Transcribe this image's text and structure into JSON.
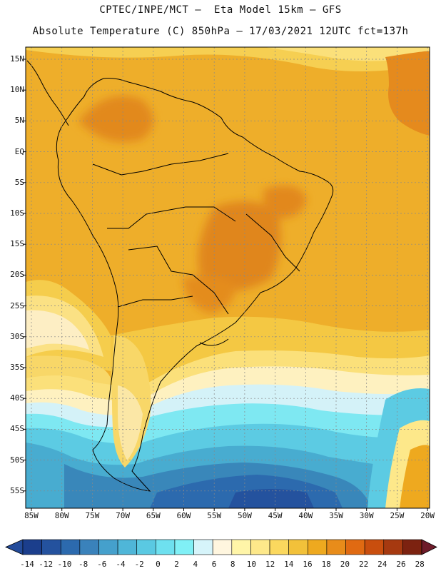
{
  "title_line1": "CPTEC/INPE/MCT –  Eta Model 15km – GFS",
  "title_line2": "Absolute Temperature (C) 850hPa – 17/03/2021 12UTC fct=137h",
  "lat_labels": [
    "15N",
    "10N",
    "5N",
    "EQ",
    "5S",
    "10S",
    "15S",
    "20S",
    "25S",
    "30S",
    "35S",
    "40S",
    "45S",
    "50S",
    "55S"
  ],
  "lon_labels": [
    "85W",
    "80W",
    "75W",
    "70W",
    "65W",
    "60W",
    "55W",
    "50W",
    "45W",
    "40W",
    "35W",
    "30W",
    "25W",
    "20W"
  ],
  "colorbar": {
    "ticks": [
      "-14",
      "-12",
      "-10",
      "-8",
      "-6",
      "-4",
      "-2",
      "0",
      "2",
      "4",
      "6",
      "8",
      "10",
      "12",
      "14",
      "16",
      "18",
      "20",
      "22",
      "24",
      "26",
      "28"
    ],
    "colors": [
      "#1b3e8c",
      "#24529e",
      "#2c6aae",
      "#3a82bb",
      "#45a0cc",
      "#4fb6d8",
      "#5ac9e2",
      "#6ee0ef",
      "#80f0f6",
      "#d6f4fa",
      "#fff6df",
      "#fff5a8",
      "#fde88a",
      "#fbd85e",
      "#f2c13a",
      "#eea91f",
      "#e88c1a",
      "#e06a12",
      "#c94e0e",
      "#a63910",
      "#7c2210"
    ],
    "under_color": "#234b9a",
    "over_color": "#6e1c2a"
  }
}
